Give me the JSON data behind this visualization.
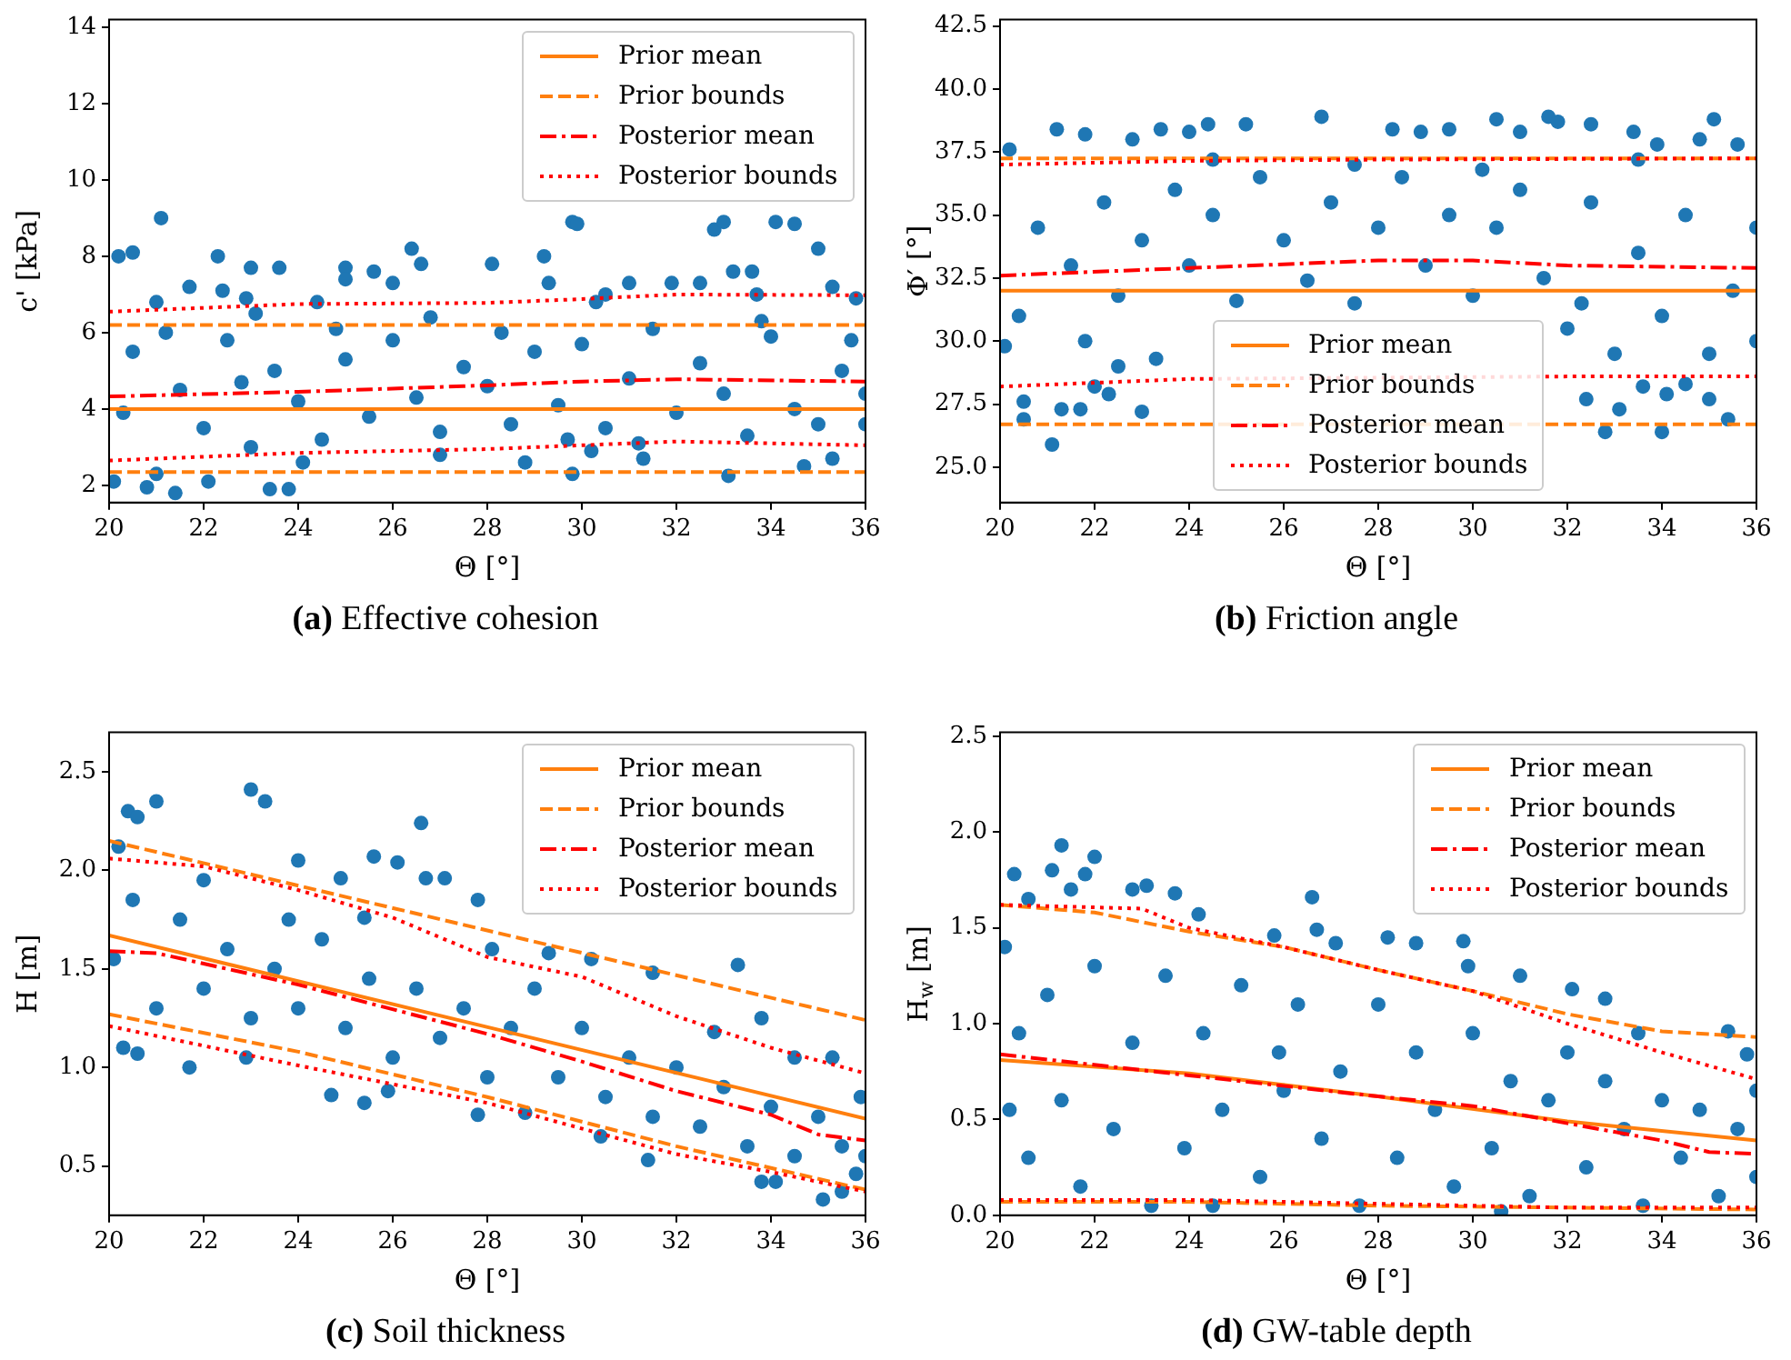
{
  "chart_data": [
    {
      "type": "scatter",
      "title": "(a) Effective cohesion",
      "xlabel": "Θ [°]",
      "ylabel": "c' [kPa]",
      "xlim": [
        20,
        36
      ],
      "xticks": [
        20,
        22,
        24,
        26,
        28,
        30,
        32,
        34,
        36
      ],
      "ylim": [
        1.55,
        14.2
      ],
      "yticks": [
        2,
        4,
        6,
        8,
        10,
        12,
        14
      ],
      "legend": "top right",
      "series": [
        {
          "type": "scatter",
          "marker": "circle",
          "color": "#1f77b4",
          "x": [
            20.2,
            20.5,
            21.1,
            21.0,
            21.7,
            22.3,
            22.4,
            22.9,
            23.0,
            23.6,
            23.1,
            24.4,
            25.0,
            25.0,
            25.6,
            26.0,
            26.4,
            26.6,
            28.1,
            29.2,
            29.3,
            29.8,
            29.9,
            30.3,
            30.5,
            31.0,
            31.9,
            32.5,
            32.8,
            33.0,
            33.2,
            33.6,
            33.7,
            34.1,
            34.5,
            35.0,
            35.3,
            35.8,
            20.8,
            21.4,
            20.1,
            22.1,
            23.4,
            23.8,
            29.8,
            33.1,
            34.7,
            21.0,
            24.1,
            28.8,
            30.2,
            31.3,
            35.3,
            27.0,
            20.5,
            21.5,
            22.0,
            22.5,
            23.0,
            23.5,
            24.0,
            24.5,
            25.0,
            25.5,
            26.0,
            26.5,
            27.0,
            27.5,
            28.0,
            28.5,
            29.0,
            29.5,
            30.0,
            30.5,
            31.0,
            31.5,
            32.0,
            32.5,
            33.0,
            33.5,
            34.0,
            34.5,
            35.0,
            35.5,
            36.0,
            20.3,
            21.2,
            22.8,
            24.8,
            26.8,
            28.3,
            29.7,
            31.2,
            33.8,
            35.7,
            36.0
          ],
          "values": [
            8.0,
            8.1,
            9.0,
            6.8,
            7.2,
            8.0,
            7.1,
            6.9,
            7.7,
            7.7,
            6.5,
            6.8,
            7.7,
            7.4,
            7.6,
            7.3,
            8.2,
            7.8,
            7.8,
            8.0,
            7.3,
            8.9,
            8.85,
            6.8,
            7.0,
            7.3,
            7.3,
            7.3,
            8.7,
            8.9,
            7.6,
            7.6,
            7.0,
            8.9,
            8.85,
            8.2,
            7.2,
            6.9,
            1.95,
            1.8,
            2.1,
            2.1,
            1.9,
            1.9,
            2.3,
            2.25,
            2.5,
            2.3,
            2.6,
            2.6,
            2.9,
            2.7,
            2.7,
            2.8,
            5.5,
            4.5,
            3.5,
            5.8,
            3.0,
            5.0,
            4.2,
            3.2,
            5.3,
            3.8,
            5.8,
            4.3,
            3.4,
            5.1,
            4.6,
            3.6,
            5.5,
            4.1,
            5.7,
            3.5,
            4.8,
            6.1,
            3.9,
            5.2,
            4.4,
            3.3,
            5.9,
            4.0,
            3.6,
            5.0,
            4.4,
            3.9,
            6.0,
            4.7,
            6.1,
            6.4,
            6.0,
            3.2,
            3.1,
            6.3,
            5.8,
            3.6
          ]
        },
        {
          "type": "line",
          "name": "Prior mean",
          "color": "#ff7f0e",
          "line_style": "solid",
          "x": [
            20,
            36
          ],
          "values": [
            4,
            4
          ]
        },
        {
          "type": "line",
          "name": "Prior bounds",
          "color": "#ff7f0e",
          "line_style": "dashed",
          "x": [
            20,
            36
          ],
          "values": [
            6.2,
            6.2
          ]
        },
        {
          "type": "line",
          "color": "#ff7f0e",
          "line_style": "dashed",
          "x": [
            20,
            36
          ],
          "values": [
            2.35,
            2.35
          ]
        },
        {
          "type": "line",
          "name": "Posterior mean",
          "color": "#ff0000",
          "line_style": "dashdot",
          "x": [
            20,
            24,
            28,
            30,
            32,
            36
          ],
          "values": [
            4.33,
            4.45,
            4.62,
            4.72,
            4.78,
            4.72
          ]
        },
        {
          "type": "line",
          "name": "Posterior bounds",
          "color": "#ff0000",
          "line_style": "dotted",
          "x": [
            20,
            24,
            28,
            30,
            32,
            36
          ],
          "values": [
            6.55,
            6.75,
            6.78,
            6.88,
            7.0,
            6.98
          ]
        },
        {
          "type": "line",
          "color": "#ff0000",
          "line_style": "dotted",
          "x": [
            20,
            24,
            28,
            30,
            32,
            36
          ],
          "values": [
            2.65,
            2.85,
            2.95,
            3.05,
            3.15,
            3.05
          ]
        }
      ]
    },
    {
      "type": "scatter",
      "title": "(b) Friction angle",
      "xlabel": "Θ [°]",
      "ylabel": "Φ′ [°]",
      "xlim": [
        20,
        36
      ],
      "xticks": [
        20,
        22,
        24,
        26,
        28,
        30,
        32,
        34,
        36
      ],
      "ylim": [
        23.6,
        42.75
      ],
      "yticks": [
        {
          "value": 25,
          "label": "25.0"
        },
        27.5,
        {
          "value": 30,
          "label": "30.0"
        },
        32.5,
        {
          "value": 35,
          "label": "35.0"
        },
        37.5,
        {
          "value": 40,
          "label": "40.0"
        },
        42.5
      ],
      "legend": "bottom",
      "series": [
        {
          "type": "scatter",
          "marker": "circle",
          "color": "#1f77b4",
          "x": [
            21.1,
            20.5,
            20.5,
            21.3,
            21.7,
            22.3,
            23.0,
            22.0,
            20.2,
            21.2,
            21.8,
            22.8,
            23.4,
            24.0,
            24.4,
            25.2,
            26.8,
            28.3,
            28.9,
            29.5,
            30.5,
            31.0,
            31.6,
            31.8,
            32.5,
            33.4,
            33.9,
            34.8,
            35.1,
            35.6,
            32.8,
            34.0,
            33.1,
            32.4,
            33.6,
            34.1,
            35.0,
            35.4,
            20.1,
            20.4,
            20.8,
            21.5,
            21.8,
            22.2,
            22.5,
            23.0,
            23.3,
            23.7,
            24.0,
            24.5,
            25.0,
            25.5,
            26.0,
            26.5,
            27.0,
            27.5,
            28.0,
            28.5,
            29.0,
            29.5,
            30.0,
            30.5,
            31.0,
            31.5,
            32.0,
            32.5,
            33.0,
            33.5,
            34.0,
            34.5,
            35.0,
            35.5,
            36.0,
            36.0,
            22.5,
            24.5,
            27.5,
            30.2,
            33.5,
            32.3,
            34.5
          ],
          "values": [
            25.9,
            26.9,
            27.6,
            27.3,
            27.3,
            27.9,
            27.2,
            28.2,
            37.6,
            38.4,
            38.2,
            38.0,
            38.4,
            38.3,
            38.6,
            38.6,
            38.9,
            38.4,
            38.3,
            38.4,
            38.8,
            38.3,
            38.9,
            38.7,
            38.6,
            38.3,
            37.8,
            38.0,
            38.8,
            37.8,
            26.4,
            26.4,
            27.3,
            27.7,
            28.2,
            27.9,
            27.7,
            26.9,
            29.8,
            31.0,
            34.5,
            33.0,
            30.0,
            35.5,
            31.8,
            34.0,
            29.3,
            36.0,
            33.0,
            35.0,
            31.6,
            36.5,
            34.0,
            32.4,
            35.5,
            31.5,
            34.5,
            36.5,
            33.0,
            35.0,
            31.8,
            34.5,
            36.0,
            32.5,
            30.5,
            35.5,
            29.5,
            33.5,
            31.0,
            35.0,
            29.5,
            32.0,
            34.5,
            30.0,
            29.0,
            37.2,
            37.0,
            36.8,
            37.2,
            31.5,
            28.3
          ]
        },
        {
          "type": "line",
          "name": "Prior mean",
          "color": "#ff7f0e",
          "line_style": "solid",
          "x": [
            20,
            36
          ],
          "values": [
            32.0,
            32.0
          ]
        },
        {
          "type": "line",
          "name": "Prior bounds",
          "color": "#ff7f0e",
          "line_style": "dashed",
          "x": [
            20,
            36
          ],
          "values": [
            37.25,
            37.25
          ]
        },
        {
          "type": "line",
          "color": "#ff7f0e",
          "line_style": "dashed",
          "x": [
            20,
            36
          ],
          "values": [
            26.7,
            26.7
          ]
        },
        {
          "type": "line",
          "name": "Posterior mean",
          "color": "#ff0000",
          "line_style": "dashdot",
          "x": [
            20,
            24,
            28,
            30,
            32,
            36
          ],
          "values": [
            32.6,
            32.9,
            33.2,
            33.2,
            33.0,
            32.9
          ]
        },
        {
          "type": "line",
          "name": "Posterior bounds",
          "color": "#ff0000",
          "line_style": "dotted",
          "x": [
            20,
            24,
            28,
            36
          ],
          "values": [
            37.0,
            37.15,
            37.2,
            37.25
          ]
        },
        {
          "type": "line",
          "color": "#ff0000",
          "line_style": "dotted",
          "x": [
            20,
            24,
            32,
            36
          ],
          "values": [
            28.2,
            28.5,
            28.6,
            28.6
          ]
        }
      ]
    },
    {
      "type": "scatter",
      "title": "(c) Soil thickness",
      "xlabel": "Θ [°]",
      "ylabel": "H [m]",
      "xlim": [
        20,
        36
      ],
      "xticks": [
        20,
        22,
        24,
        26,
        28,
        30,
        32,
        34,
        36
      ],
      "ylim": [
        0.25,
        2.7
      ],
      "yticks": [
        0.5,
        {
          "value": 1,
          "label": "1.0"
        },
        1.5,
        {
          "value": 2,
          "label": "2.0"
        },
        2.5
      ],
      "legend": "top right",
      "series": [
        {
          "type": "scatter",
          "marker": "circle",
          "color": "#1f77b4",
          "x": [
            20.2,
            20.4,
            20.6,
            21.0,
            23.0,
            23.3,
            26.6,
            26.1,
            25.6,
            26.7,
            27.1,
            24.0,
            24.9,
            25.4,
            27.8,
            20.3,
            20.6,
            21.7,
            22.9,
            24.7,
            25.4,
            25.9,
            27.8,
            28.8,
            30.4,
            31.4,
            33.3,
            33.8,
            33.8,
            34.1,
            35.1,
            35.5,
            35.8,
            35.9,
            35.3,
            31.5,
            30.2,
            29.3,
            28.1,
            20.1,
            20.5,
            21.0,
            21.5,
            22.0,
            22.5,
            23.0,
            23.5,
            24.0,
            24.5,
            25.0,
            25.5,
            26.0,
            26.5,
            27.0,
            27.5,
            28.0,
            28.5,
            29.0,
            29.5,
            30.0,
            30.5,
            31.0,
            31.5,
            32.0,
            32.5,
            33.0,
            33.5,
            34.0,
            34.5,
            35.0,
            35.5,
            36.0,
            32.8,
            34.5,
            22.0,
            23.8
          ],
          "values": [
            2.12,
            2.3,
            2.27,
            2.35,
            2.41,
            2.35,
            2.24,
            2.04,
            2.07,
            1.96,
            1.96,
            2.05,
            1.96,
            1.76,
            1.85,
            1.1,
            1.07,
            1.0,
            1.05,
            0.86,
            0.82,
            0.88,
            0.76,
            0.77,
            0.65,
            0.53,
            1.52,
            1.25,
            0.42,
            0.42,
            0.33,
            0.37,
            0.46,
            0.85,
            1.05,
            1.48,
            1.55,
            1.58,
            1.6,
            1.55,
            1.85,
            1.3,
            1.75,
            1.4,
            1.6,
            1.25,
            1.5,
            1.3,
            1.65,
            1.2,
            1.45,
            1.05,
            1.4,
            1.15,
            1.3,
            0.95,
            1.2,
            1.4,
            0.95,
            1.2,
            0.85,
            1.05,
            0.75,
            1.0,
            0.7,
            0.9,
            0.6,
            0.8,
            0.55,
            0.75,
            0.6,
            0.55,
            1.18,
            1.05,
            1.95,
            1.75
          ]
        },
        {
          "type": "line",
          "name": "Prior mean",
          "color": "#ff7f0e",
          "line_style": "solid",
          "x": [
            20,
            36
          ],
          "values": [
            1.67,
            0.74
          ]
        },
        {
          "type": "line",
          "name": "Prior bounds",
          "color": "#ff7f0e",
          "line_style": "dashed",
          "x": [
            20,
            36
          ],
          "values": [
            2.15,
            1.24
          ]
        },
        {
          "type": "line",
          "color": "#ff7f0e",
          "line_style": "dashed",
          "x": [
            20,
            24,
            28,
            32,
            36
          ],
          "values": [
            1.27,
            1.08,
            0.85,
            0.6,
            0.38
          ]
        },
        {
          "type": "line",
          "name": "Posterior mean",
          "color": "#ff0000",
          "line_style": "dashdot",
          "x": [
            20,
            21,
            24,
            28,
            30,
            32,
            34,
            35,
            36
          ],
          "values": [
            1.59,
            1.58,
            1.42,
            1.17,
            1.03,
            0.88,
            0.76,
            0.66,
            0.63
          ]
        },
        {
          "type": "line",
          "name": "Posterior bounds",
          "color": "#ff0000",
          "line_style": "dotted",
          "x": [
            20,
            22,
            24,
            26,
            28,
            30,
            32,
            34,
            36
          ],
          "values": [
            2.06,
            2.02,
            1.9,
            1.76,
            1.56,
            1.46,
            1.26,
            1.1,
            0.97
          ]
        },
        {
          "type": "line",
          "color": "#ff0000",
          "line_style": "dotted",
          "x": [
            20,
            24,
            28,
            32,
            34,
            36
          ],
          "values": [
            1.21,
            1.01,
            0.82,
            0.56,
            0.47,
            0.37
          ]
        }
      ]
    },
    {
      "type": "scatter",
      "title": "(d) GW-table depth",
      "xlabel": "Θ [°]",
      "ylabel": "H$_{w}$ [m]",
      "xlim": [
        20,
        36
      ],
      "xticks": [
        20,
        22,
        24,
        26,
        28,
        30,
        32,
        34,
        36
      ],
      "ylim": [
        0,
        2.52
      ],
      "yticks": [
        {
          "value": 0,
          "label": "0.0"
        },
        0.5,
        {
          "value": 1,
          "label": "1.0"
        },
        1.5,
        {
          "value": 2,
          "label": "2.0"
        },
        2.5
      ],
      "legend": "top right",
      "series": [
        {
          "type": "scatter",
          "marker": "circle",
          "color": "#1f77b4",
          "x": [
            21.3,
            21.1,
            20.3,
            22.0,
            21.8,
            21.5,
            22.8,
            23.1,
            23.7,
            24.2,
            26.6,
            20.6,
            25.8,
            26.7,
            27.1,
            28.2,
            28.8,
            29.8,
            29.9,
            31.0,
            32.1,
            32.8,
            35.4,
            35.8,
            36.0,
            20.1,
            20.4,
            20.6,
            21.0,
            21.3,
            21.7,
            22.0,
            22.4,
            22.8,
            23.2,
            23.5,
            23.9,
            24.3,
            24.7,
            25.1,
            25.5,
            25.9,
            26.3,
            26.8,
            27.2,
            27.6,
            28.0,
            28.4,
            28.8,
            29.2,
            29.6,
            30.0,
            30.4,
            30.8,
            31.2,
            31.6,
            32.0,
            32.4,
            32.8,
            33.2,
            33.6,
            34.0,
            34.4,
            34.8,
            35.2,
            35.6,
            36.0,
            20.2,
            24.5,
            30.6,
            26.0,
            33.5
          ],
          "values": [
            1.93,
            1.8,
            1.78,
            1.87,
            1.78,
            1.7,
            1.7,
            1.72,
            1.68,
            1.57,
            1.66,
            1.65,
            1.46,
            1.49,
            1.42,
            1.45,
            1.42,
            1.43,
            1.3,
            1.25,
            1.18,
            1.13,
            0.96,
            0.84,
            0.65,
            1.4,
            0.95,
            0.3,
            1.15,
            0.6,
            0.15,
            1.3,
            0.45,
            0.9,
            0.05,
            1.25,
            0.35,
            0.95,
            0.55,
            1.2,
            0.2,
            0.85,
            1.1,
            0.4,
            0.75,
            0.05,
            1.1,
            0.3,
            0.85,
            0.55,
            0.15,
            0.95,
            0.35,
            0.7,
            0.1,
            0.6,
            0.85,
            0.25,
            0.7,
            0.45,
            0.05,
            0.6,
            0.3,
            0.55,
            0.1,
            0.45,
            0.2,
            0.55,
            0.05,
            0.02,
            0.65,
            0.95
          ]
        },
        {
          "type": "line",
          "name": "Prior mean",
          "color": "#ff7f0e",
          "line_style": "solid",
          "x": [
            20,
            24,
            28,
            32,
            36
          ],
          "values": [
            0.81,
            0.74,
            0.62,
            0.49,
            0.39
          ]
        },
        {
          "type": "line",
          "name": "Prior bounds",
          "color": "#ff7f0e",
          "line_style": "dashed",
          "x": [
            20,
            22,
            24,
            26,
            28,
            30,
            32,
            34,
            36
          ],
          "values": [
            1.62,
            1.58,
            1.48,
            1.4,
            1.28,
            1.17,
            1.05,
            0.96,
            0.93
          ]
        },
        {
          "type": "line",
          "color": "#ff7f0e",
          "line_style": "dashed",
          "x": [
            20,
            24,
            28,
            32,
            36
          ],
          "values": [
            0.07,
            0.07,
            0.05,
            0.04,
            0.03
          ]
        },
        {
          "type": "line",
          "name": "Posterior mean",
          "color": "#ff0000",
          "line_style": "dashdot",
          "x": [
            20,
            24,
            28,
            30,
            32,
            34,
            35,
            36
          ],
          "values": [
            0.84,
            0.73,
            0.62,
            0.57,
            0.48,
            0.39,
            0.33,
            0.32
          ]
        },
        {
          "type": "line",
          "name": "Posterior bounds",
          "color": "#ff0000",
          "line_style": "dotted",
          "x": [
            20,
            23,
            24,
            26,
            28,
            30,
            32,
            34,
            36
          ],
          "values": [
            1.62,
            1.6,
            1.5,
            1.4,
            1.28,
            1.17,
            1.0,
            0.85,
            0.71
          ]
        },
        {
          "type": "line",
          "color": "#ff0000",
          "line_style": "dotted",
          "x": [
            20,
            24,
            28,
            32,
            36
          ],
          "values": [
            0.08,
            0.08,
            0.06,
            0.04,
            0.04
          ]
        }
      ]
    }
  ]
}
